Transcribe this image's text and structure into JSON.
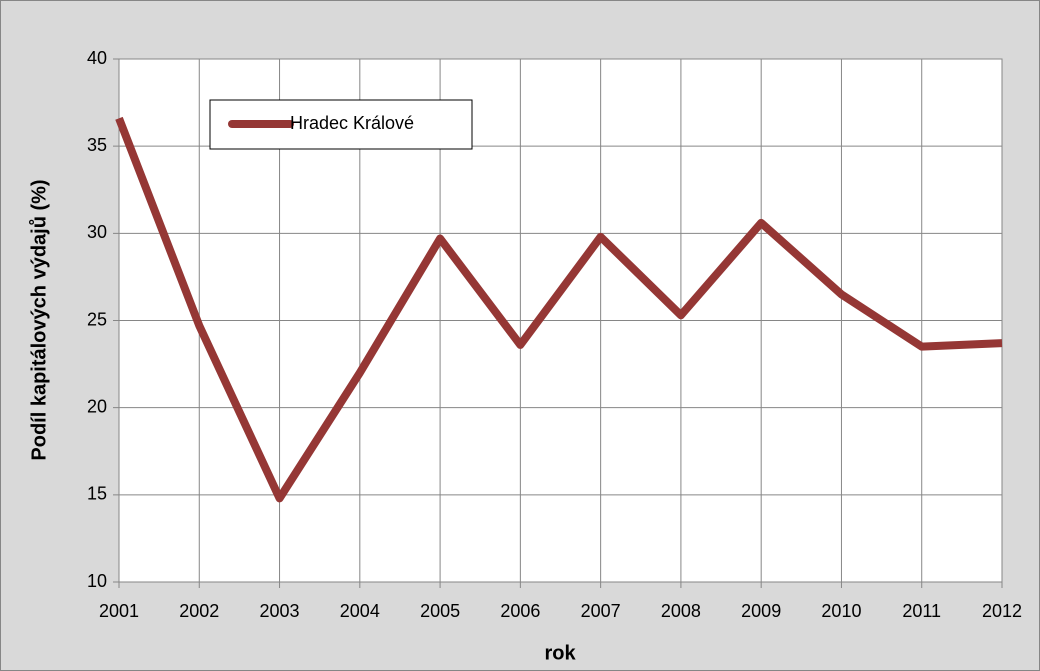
{
  "chart_data": {
    "type": "line",
    "xlabel": "rok",
    "ylabel": "Podíl kapitálových výdajů (%)",
    "x": [
      2001,
      2002,
      2003,
      2004,
      2005,
      2006,
      2007,
      2008,
      2009,
      2010,
      2011,
      2012
    ],
    "series": [
      {
        "name": "Hradec Králové",
        "color": "#953735",
        "values": [
          36.6,
          24.7,
          14.8,
          22.0,
          29.7,
          23.6,
          29.8,
          25.3,
          30.6,
          26.5,
          23.5,
          23.7
        ]
      }
    ],
    "xlim": [
      2001,
      2012
    ],
    "xticks": [
      2001,
      2002,
      2003,
      2004,
      2005,
      2006,
      2007,
      2008,
      2009,
      2010,
      2011,
      2012
    ],
    "ylim": [
      10,
      40
    ],
    "yticks": [
      10,
      15,
      20,
      25,
      30,
      35,
      40
    ],
    "grid": true,
    "legend": "top-left"
  }
}
